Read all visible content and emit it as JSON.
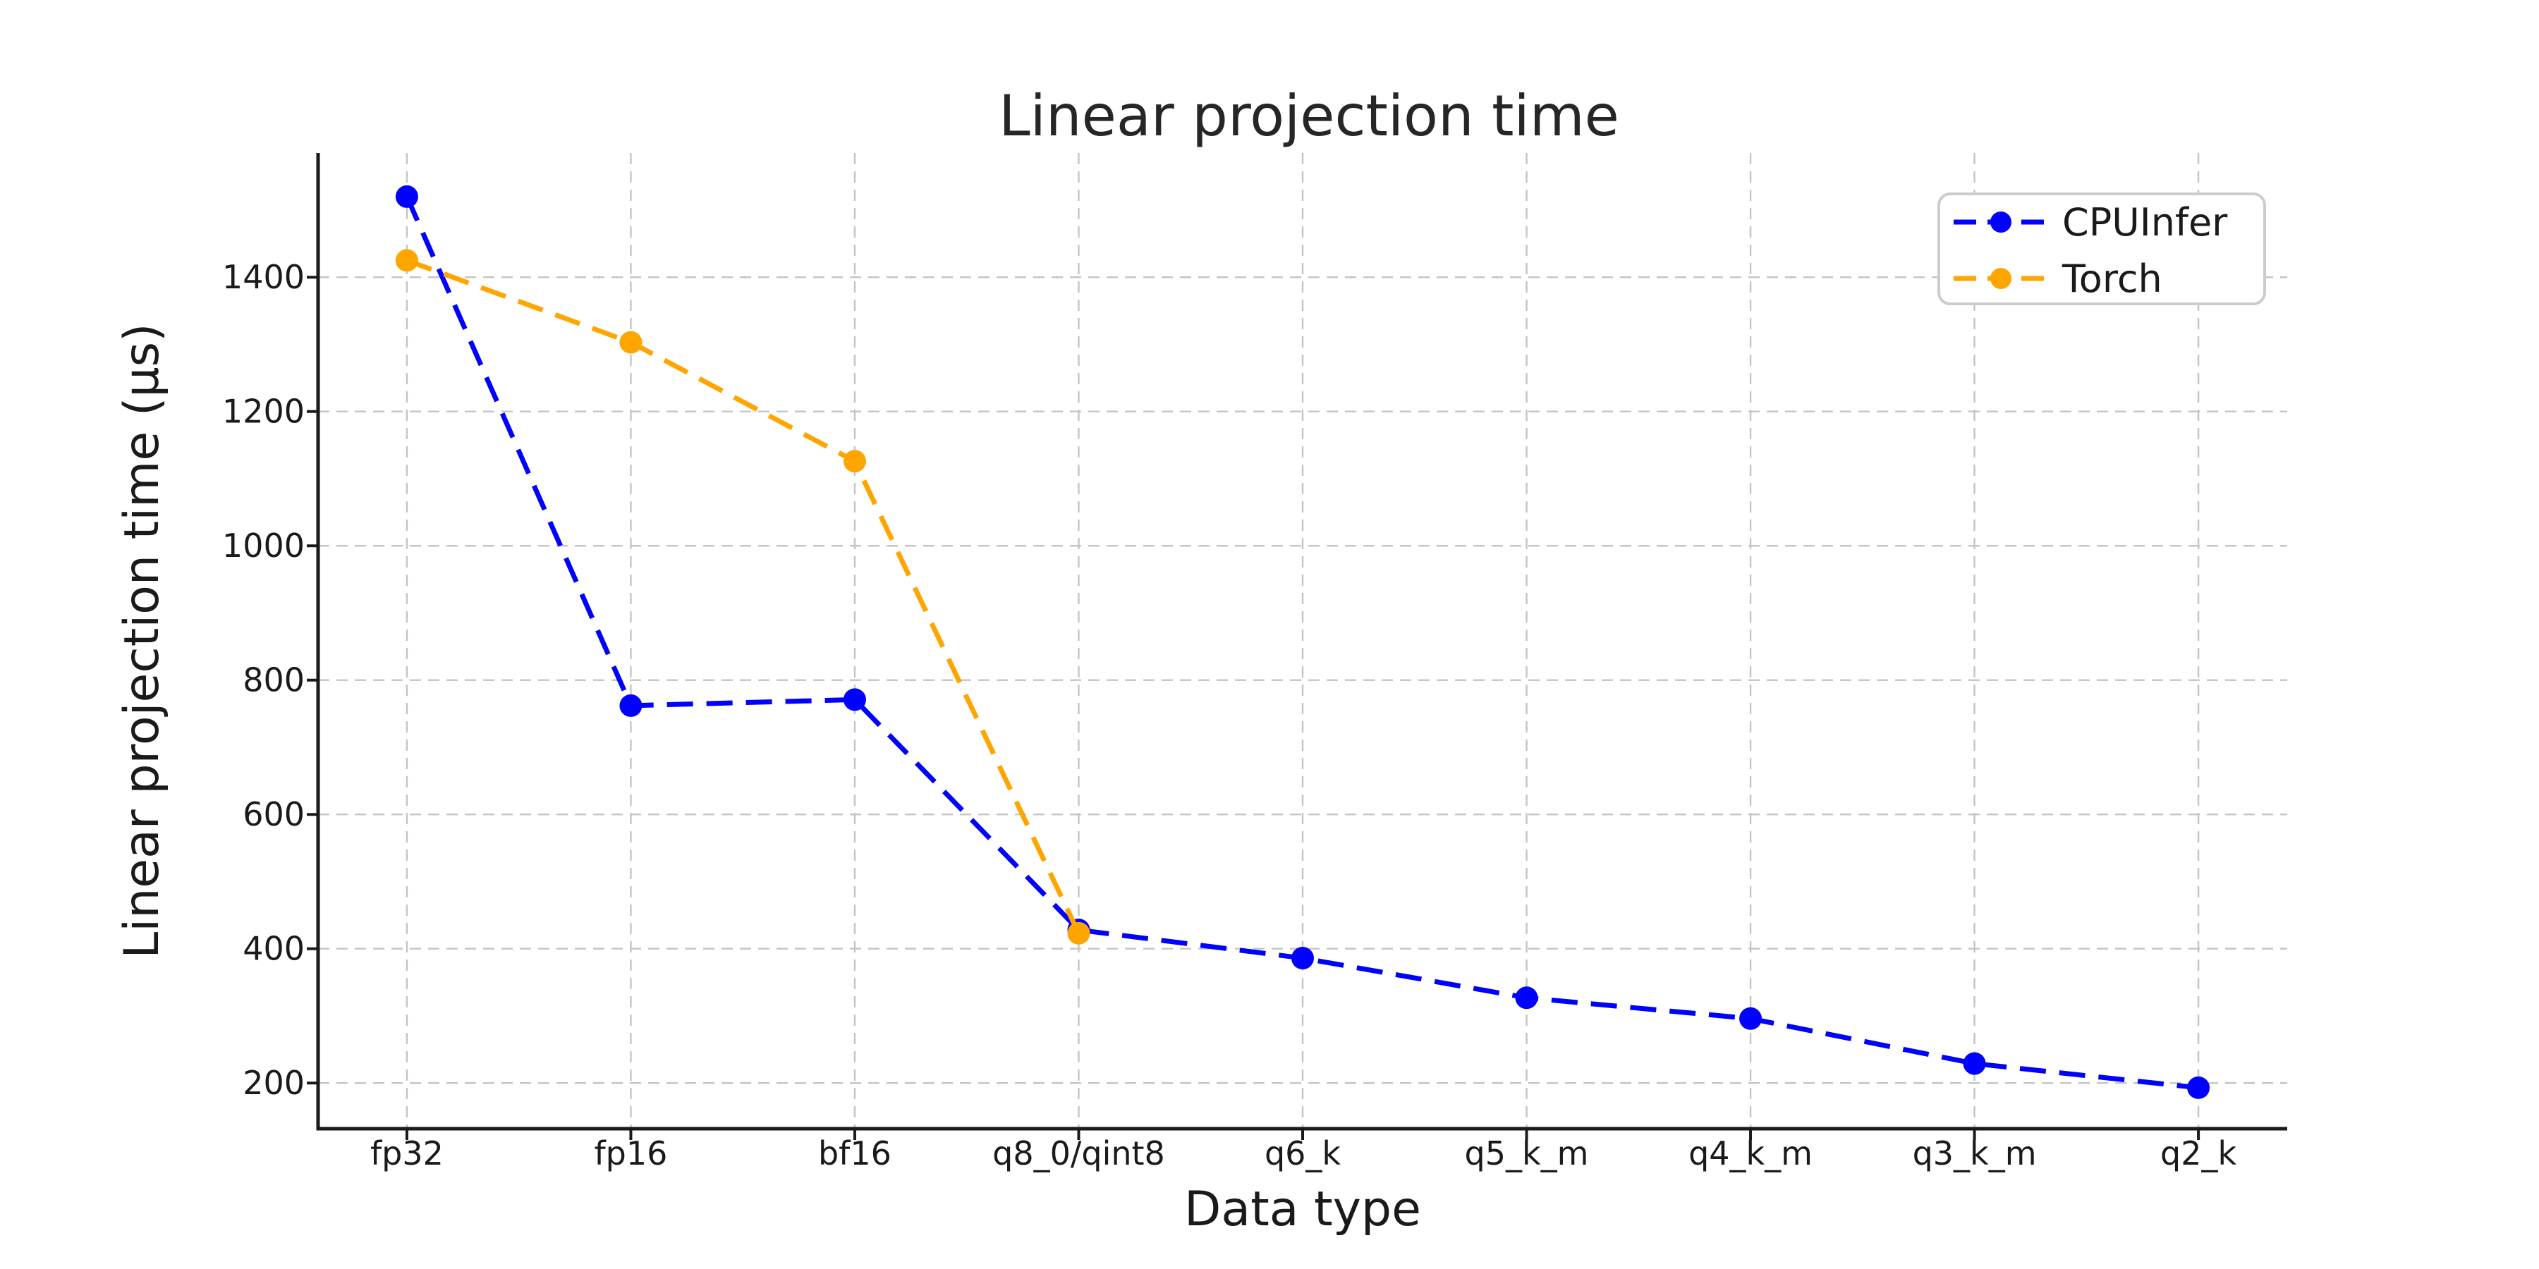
{
  "chart_data": {
    "type": "line",
    "title": "Linear projection time",
    "xlabel": "Data type",
    "ylabel": "Linear projection time (µs)",
    "categories": [
      "fp32",
      "fp16",
      "bf16",
      "q8_0/qint8",
      "q6_k",
      "q5_k_m",
      "q4_k_m",
      "q3_k_m",
      "q2_k"
    ],
    "series": [
      {
        "name": "CPUInfer",
        "color": "#0000ff",
        "values": [
          1520,
          762,
          771,
          428,
          386,
          327,
          296,
          229,
          193
        ]
      },
      {
        "name": "Torch",
        "color": "#ffa500",
        "values": [
          1425,
          1303,
          1126,
          423,
          null,
          null,
          null,
          null,
          null
        ]
      }
    ],
    "yticks": [
      200,
      400,
      600,
      800,
      1000,
      1200,
      1400
    ],
    "ylim": [
      132,
      1585
    ],
    "grid": true,
    "grid_style": "dashed",
    "line_style": "dashed",
    "marker": "circle",
    "legend_position": "upper right",
    "colors": {
      "grid": "#c4c4c4",
      "spine": "#1a1a1a",
      "background": "#ffffff",
      "legend_border": "#cccccc"
    }
  }
}
